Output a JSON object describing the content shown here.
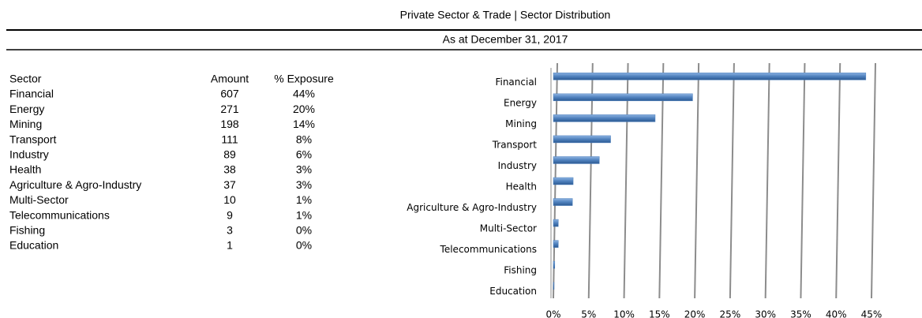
{
  "header": {
    "title": "Private Sector & Trade | Sector Distribution",
    "subtitle": "As at December 31, 2017"
  },
  "table": {
    "columns": [
      "Sector",
      "Amount",
      "% Exposure"
    ],
    "rows": [
      [
        "Financial",
        607,
        "44%"
      ],
      [
        "Energy",
        271,
        "20%"
      ],
      [
        "Mining",
        198,
        "14%"
      ],
      [
        "Transport",
        111,
        "8%"
      ],
      [
        "Industry",
        89,
        "6%"
      ],
      [
        "Health",
        38,
        "3%"
      ],
      [
        "Agriculture & Agro-Industry",
        37,
        "3%"
      ],
      [
        "Multi-Sector",
        10,
        "1%"
      ],
      [
        "Telecommunications",
        9,
        "1%"
      ],
      [
        "Fishing",
        3,
        "0%"
      ],
      [
        "Education",
        1,
        "0%"
      ]
    ]
  },
  "chart_data": {
    "type": "bar",
    "orientation": "horizontal",
    "categories": [
      "Financial",
      "Energy",
      "Mining",
      "Transport",
      "Industry",
      "Health",
      "Agriculture & Agro-Industry",
      "Multi-Sector",
      "Telecommunications",
      "Fishing",
      "Education"
    ],
    "values": [
      44.2,
      19.7,
      14.4,
      8.1,
      6.5,
      2.8,
      2.7,
      0.7,
      0.7,
      0.2,
      0.1
    ],
    "color": "#4f81bd",
    "xlim": [
      0,
      45
    ],
    "xticks": [
      {
        "value": 0,
        "label": "0%"
      },
      {
        "value": 5,
        "label": "5%"
      },
      {
        "value": 10,
        "label": "10%"
      },
      {
        "value": 15,
        "label": "15%"
      },
      {
        "value": 20,
        "label": "20%"
      },
      {
        "value": 25,
        "label": "25%"
      },
      {
        "value": 30,
        "label": "30%"
      },
      {
        "value": 35,
        "label": "35%"
      },
      {
        "value": 40,
        "label": "40%"
      },
      {
        "value": 45,
        "label": "45%"
      }
    ],
    "grid": true
  }
}
